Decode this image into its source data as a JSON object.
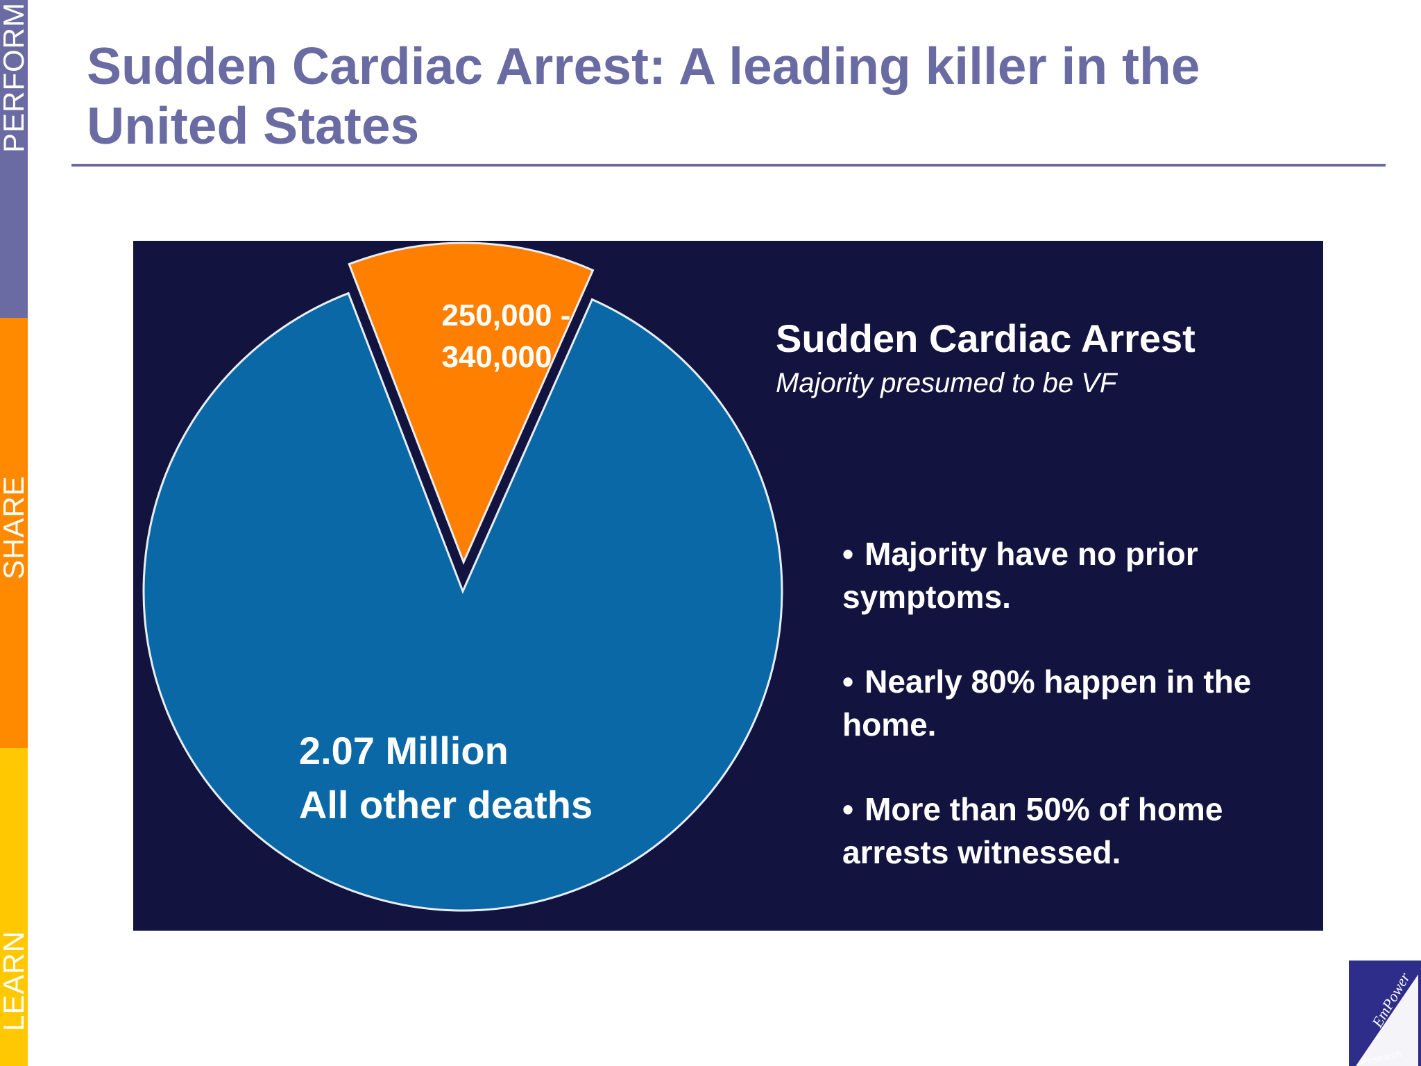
{
  "sidebar": {
    "labels": [
      "PERFORM",
      "SHARE",
      "LEARN"
    ],
    "colors": [
      "#6b6ba3",
      "#ff8a00",
      "#ffc800"
    ]
  },
  "slide": {
    "title": "Sudden Cardiac Arrest: A leading killer in the United States"
  },
  "chart_data": {
    "type": "pie",
    "slices": [
      {
        "label_line1": "250,000 -",
        "label_line2": "340,000",
        "value": 295000,
        "color": "#ff7f00",
        "exploded": true
      },
      {
        "label_line1": "2.07 Million",
        "label_line2": "All other deaths",
        "value": 2070000,
        "color": "#0968a5",
        "exploded": false
      }
    ],
    "panel_background": "#13133f",
    "callout_title": "Sudden Cardiac Arrest",
    "callout_subtitle": "Majority presumed to be VF",
    "bullets": [
      "Majority have no prior symptoms.",
      "Nearly 80% happen in the home.",
      "More than 50% of home arrests witnessed."
    ]
  },
  "logo": {
    "word": "EmPower",
    "sub": "Research",
    "color": "#2e2e8a"
  }
}
